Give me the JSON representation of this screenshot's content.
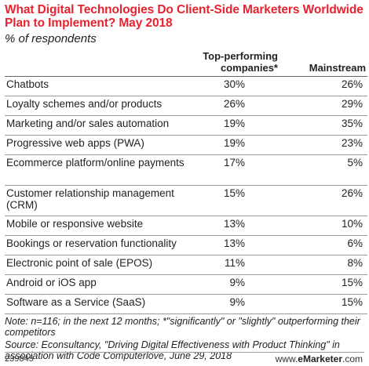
{
  "chart_data": {
    "type": "table",
    "title": "What Digital Technologies Do Client-Side Marketers Worldwide Plan to Implement? May 2018",
    "subtitle": "% of respondents",
    "columns": [
      "Top-performing companies*",
      "Mainstream"
    ],
    "rows": [
      {
        "label": "Chatbots",
        "values": [
          "30%",
          "26%"
        ]
      },
      {
        "label": "Loyalty schemes and/or products",
        "values": [
          "26%",
          "29%"
        ]
      },
      {
        "label": "Marketing and/or sales automation",
        "values": [
          "19%",
          "35%"
        ]
      },
      {
        "label": "Progressive web apps (PWA)",
        "values": [
          "19%",
          "23%"
        ]
      },
      {
        "label": "Ecommerce platform/online payments",
        "values": [
          "17%",
          "5%"
        ]
      },
      {
        "label": "Customer relationship management (CRM)",
        "values": [
          "15%",
          "26%"
        ]
      },
      {
        "label": "Mobile or responsive website",
        "values": [
          "13%",
          "10%"
        ]
      },
      {
        "label": "Bookings or reservation functionality",
        "values": [
          "13%",
          "6%"
        ]
      },
      {
        "label": "Electronic point of sale (EPOS)",
        "values": [
          "11%",
          "8%"
        ]
      },
      {
        "label": "Android or iOS app",
        "values": [
          "9%",
          "15%"
        ]
      },
      {
        "label": "Software as a Service (SaaS)",
        "values": [
          "9%",
          "15%"
        ]
      }
    ]
  },
  "notes": {
    "note": "Note: n=116; in the next 12 months; *\"significantly\" or \"slightly\" outperforming their competitors",
    "source": "Source: Econsultancy, \"Driving Digital Effectiveness with Product Thinking\" in association with Code Computerlove, June 29, 2018"
  },
  "footer": {
    "chart_id": "239845",
    "brand_prefix": "www.",
    "brand_name": "eMarketer",
    "brand_suffix": ".com"
  }
}
